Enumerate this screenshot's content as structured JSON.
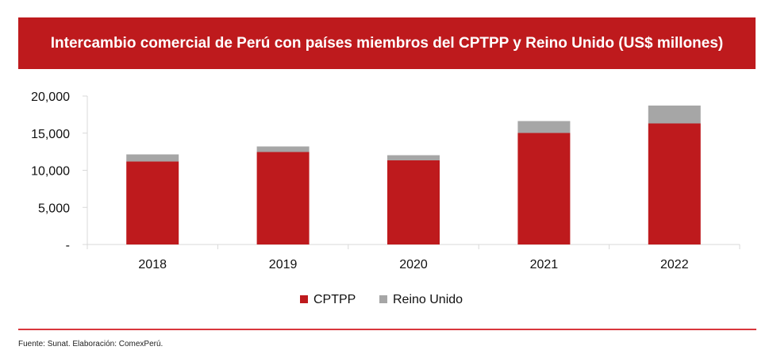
{
  "header": {
    "title": "Intercambio comercial de Perú con países miembros del CPTPP y Reino Unido (US$ millones)"
  },
  "footer": {
    "source": "Fuente: Sunat. Elaboración: ComexPerú."
  },
  "colors": {
    "header_bg": "#be1a1d",
    "cptpp": "#be1a1d",
    "reino_unido": "#a6a6a6",
    "rule": "#d9363c"
  },
  "chart_data": {
    "type": "bar",
    "stacked": true,
    "title": "Intercambio comercial de Perú con países miembros del CPTPP y Reino Unido (US$ millones)",
    "xlabel": "",
    "ylabel": "",
    "categories": [
      "2018",
      "2019",
      "2020",
      "2021",
      "2022"
    ],
    "series": [
      {
        "name": "CPTPP",
        "color": "#be1a1d",
        "values": [
          11180,
          12460,
          11340,
          15030,
          16310
        ]
      },
      {
        "name": "Reino Unido",
        "color": "#a6a6a6",
        "values": [
          960,
          750,
          690,
          1600,
          2410
        ]
      }
    ],
    "ylim": [
      0,
      20000
    ],
    "yticks": [
      0,
      5000,
      10000,
      15000,
      20000
    ],
    "ytick_labels": [
      "-",
      "5,000",
      "10,000",
      "15,000",
      "20,000"
    ],
    "grid": false,
    "legend": {
      "position": "bottom",
      "entries": [
        "CPTPP",
        "Reino Unido"
      ]
    }
  }
}
